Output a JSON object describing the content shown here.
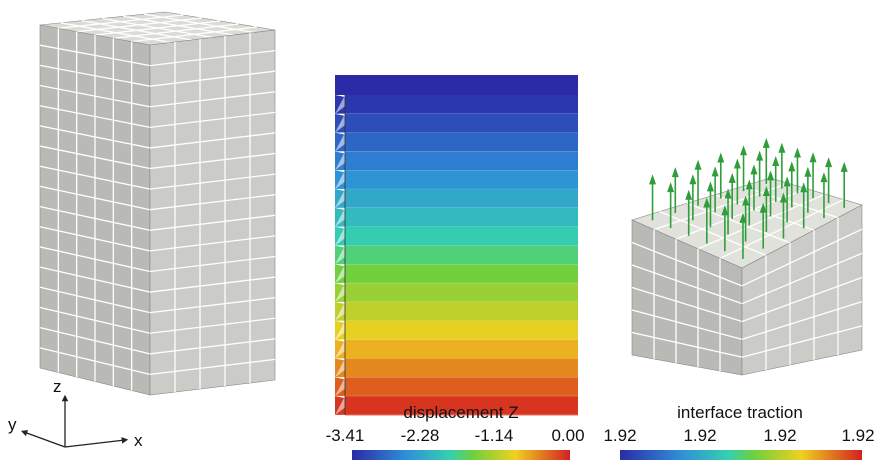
{
  "axes": {
    "z": "z",
    "y": "y",
    "x": "x"
  },
  "colorbars": [
    {
      "title": "displacement Z",
      "ticks": [
        "-3.41",
        "-2.28",
        "-1.14",
        "0.00"
      ]
    },
    {
      "title": "interface traction",
      "ticks": [
        "1.92",
        "1.92",
        "1.92",
        "1.92"
      ]
    }
  ]
}
